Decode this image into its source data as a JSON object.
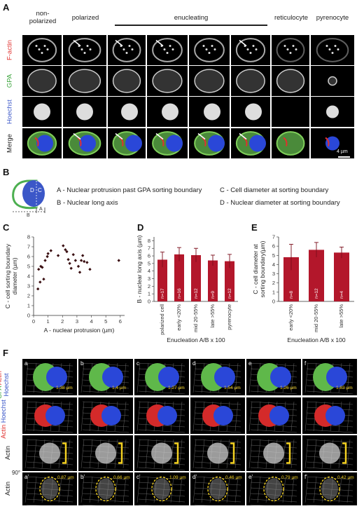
{
  "panel_a": {
    "letter": "A",
    "col_headers": [
      "non-\npolarized",
      "polarized",
      "enucleating",
      "reticulocyte",
      "pyrenocyte"
    ],
    "rows": [
      {
        "label": "F-actin",
        "color": "#e0312f"
      },
      {
        "label": "GPA",
        "color": "#3aa43b"
      },
      {
        "label": "Hoechst",
        "color": "#3b57c8"
      },
      {
        "label": "Merge",
        "color": "#222222"
      }
    ],
    "scale": "4 µm"
  },
  "panel_b": {
    "letter": "B",
    "schematic_labels": {
      "d": "D",
      "c": "C",
      "a": "A",
      "b": "B"
    },
    "legend": [
      "A - Nuclear protrusion past GPA sorting boundary",
      "B - Nuclear long axis",
      "C - Cell diameter at sorting boundary",
      "D - Nuclear diameter at sorting boundary"
    ]
  },
  "panel_c": {
    "letter": "C",
    "chart_data": {
      "type": "scatter",
      "xlabel": "A - nuclear protrusion (µm)",
      "ylabel": "C - cell sorting boundary\ndiameter (µm)",
      "xlim": [
        0,
        6.3
      ],
      "ylim": [
        0,
        8
      ],
      "xticks": [
        0,
        1,
        2,
        3,
        4,
        5,
        6
      ],
      "yticks": [
        0,
        1,
        2,
        3,
        4,
        5,
        6,
        7,
        8
      ],
      "points": [
        [
          0.3,
          2.7
        ],
        [
          0.45,
          3.4
        ],
        [
          0.35,
          4.7
        ],
        [
          0.5,
          5.0
        ],
        [
          0.6,
          4.9
        ],
        [
          0.7,
          3.7
        ],
        [
          0.8,
          5.6
        ],
        [
          0.95,
          6.0
        ],
        [
          1.0,
          6.3
        ],
        [
          1.2,
          6.6
        ],
        [
          1.7,
          6.1
        ],
        [
          2.05,
          7.1
        ],
        [
          2.2,
          6.7
        ],
        [
          2.3,
          6.5
        ],
        [
          2.4,
          5.7
        ],
        [
          2.5,
          5.3
        ],
        [
          2.6,
          4.8
        ],
        [
          2.75,
          6.2
        ],
        [
          2.9,
          5.6
        ],
        [
          3.1,
          5.0
        ],
        [
          3.2,
          4.4
        ],
        [
          3.3,
          5.6
        ],
        [
          3.4,
          6.1
        ],
        [
          3.5,
          5.5
        ],
        [
          3.7,
          5.4
        ],
        [
          3.9,
          4.7
        ],
        [
          5.9,
          5.6
        ]
      ]
    }
  },
  "panel_d": {
    "letter": "D",
    "chart_data": {
      "type": "bar",
      "categories": [
        "polarized cell",
        "early <20%",
        "mid 20-55%",
        "late >55%",
        "pyrenocyte"
      ],
      "values": [
        5.5,
        6.2,
        6.1,
        5.4,
        5.3
      ],
      "errors": [
        1.0,
        0.9,
        0.9,
        0.7,
        0.9
      ],
      "n_labels": [
        "n=17",
        "n=16",
        "n=12",
        "n=9",
        "n=12"
      ],
      "ylabel": "B - nuclear long axis (µm)",
      "xlabel": "Enucleation A/B x 100",
      "ylim": [
        0,
        8.5
      ],
      "yticks": [
        0,
        1,
        2,
        3,
        4,
        5,
        6,
        7,
        8
      ],
      "color": "#b3172b"
    }
  },
  "panel_e": {
    "letter": "E",
    "chart_data": {
      "type": "bar",
      "categories": [
        "early <20%",
        "mid 20-55%",
        "late >55%"
      ],
      "values": [
        4.8,
        5.6,
        5.3
      ],
      "errors": [
        1.4,
        0.8,
        0.6
      ],
      "n_labels": [
        "n=8",
        "n=12",
        "n=4"
      ],
      "ylabel": "C - cell diameter at\nsorting boundary(µm)",
      "xlabel": "Enucleation A/B x 100",
      "ylim": [
        0,
        7
      ],
      "yticks": [
        0,
        1,
        2,
        3,
        4,
        5,
        6,
        7
      ],
      "color": "#b3172b"
    }
  },
  "panel_f": {
    "letter": "F",
    "col_letters": [
      "a",
      "b",
      "c",
      "d",
      "e",
      "f"
    ],
    "row4_letters": [
      "a'",
      "b'",
      "c'",
      "d'",
      "e'",
      "f'"
    ],
    "measurements": [
      "1.38 µm",
      "1.4 µm",
      "1.27 µm",
      "1.54 µm",
      "1.26 µm",
      "1.83 µm"
    ],
    "row4_measurements": [
      "0.87 µm",
      "0.66 µm",
      "1.09 µm",
      "0.46 µm",
      "0.79 µm",
      "0.42 µm"
    ],
    "rows": [
      {
        "labels": [
          {
            "t": "GPA",
            "c": "#3aa43b"
          },
          {
            "t": "Actin",
            "c": "#e0312f"
          },
          {
            "t": "Hoechst",
            "c": "#3b57c8"
          }
        ]
      },
      {
        "labels": [
          {
            "t": "Actin",
            "c": "#e0312f"
          },
          {
            "t": "Hoechst",
            "c": "#3b57c8"
          }
        ]
      },
      {
        "labels": [
          {
            "t": "Actin",
            "c": "#222222"
          }
        ]
      },
      {
        "labels": [
          {
            "t": "Actin",
            "c": "#222222"
          }
        ],
        "rotation": "90°"
      }
    ]
  }
}
